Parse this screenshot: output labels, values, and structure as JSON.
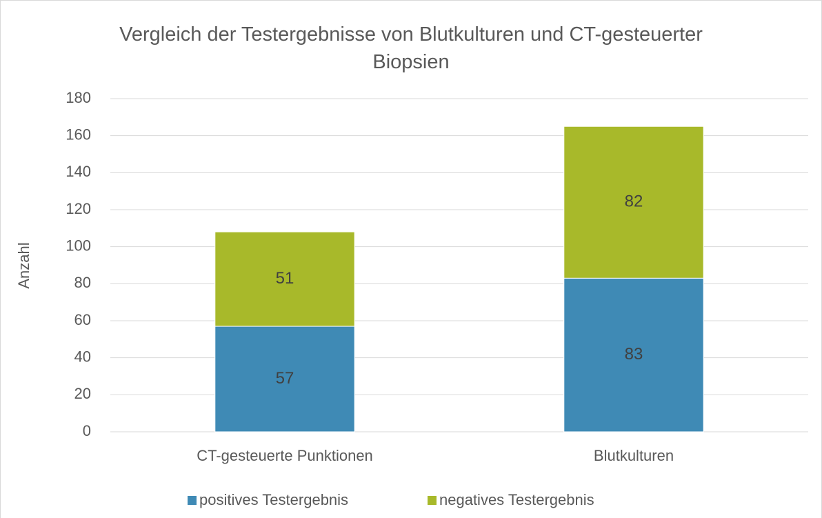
{
  "chart_data": {
    "type": "stacked_bar",
    "title": "Vergleich der Testergebnisse von Blutkulturen und CT-gesteuerter Biopsien",
    "y_label": "Anzahl",
    "categories": [
      "CT-gesteuerte Punktionen",
      "Blutkulturen"
    ],
    "series": [
      {
        "name": "positives Testergebnis",
        "color": "#3f8ab5",
        "values": [
          57,
          83
        ]
      },
      {
        "name": "negatives Testergebnis",
        "color": "#a8b92a",
        "values": [
          51,
          82
        ]
      }
    ],
    "ylim": [
      0,
      180
    ],
    "yticks": [
      0,
      20,
      40,
      60,
      80,
      100,
      120,
      140,
      160,
      180
    ],
    "grid": true,
    "legend": "bottom"
  }
}
